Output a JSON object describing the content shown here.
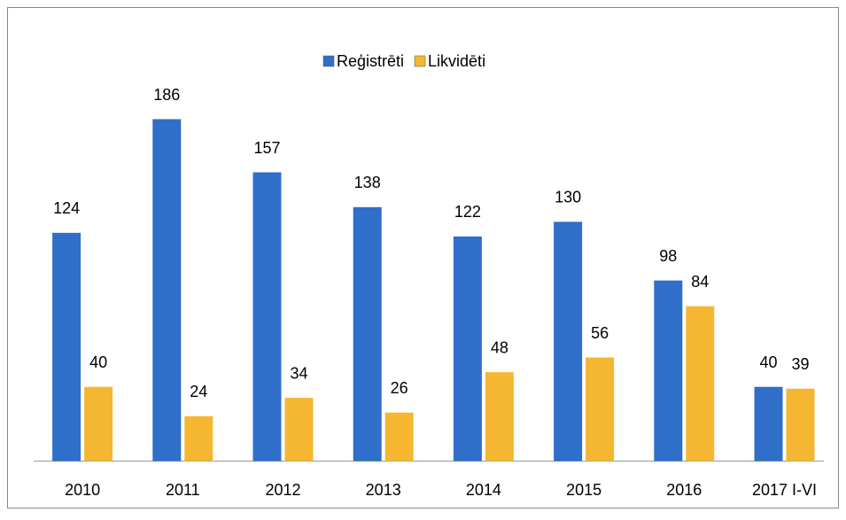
{
  "chart_data": {
    "type": "bar",
    "categories": [
      "2010",
      "2011",
      "2012",
      "2013",
      "2014",
      "2015",
      "2016",
      "2017 I-VI"
    ],
    "series": [
      {
        "name": "Reģistrēti",
        "color": "#2f6fc9",
        "values": [
          124,
          186,
          157,
          138,
          122,
          130,
          98,
          40
        ]
      },
      {
        "name": "Likvidēti",
        "color": "#f5b731",
        "values": [
          40,
          24,
          34,
          26,
          48,
          56,
          84,
          39
        ]
      }
    ],
    "legend": "top"
  }
}
